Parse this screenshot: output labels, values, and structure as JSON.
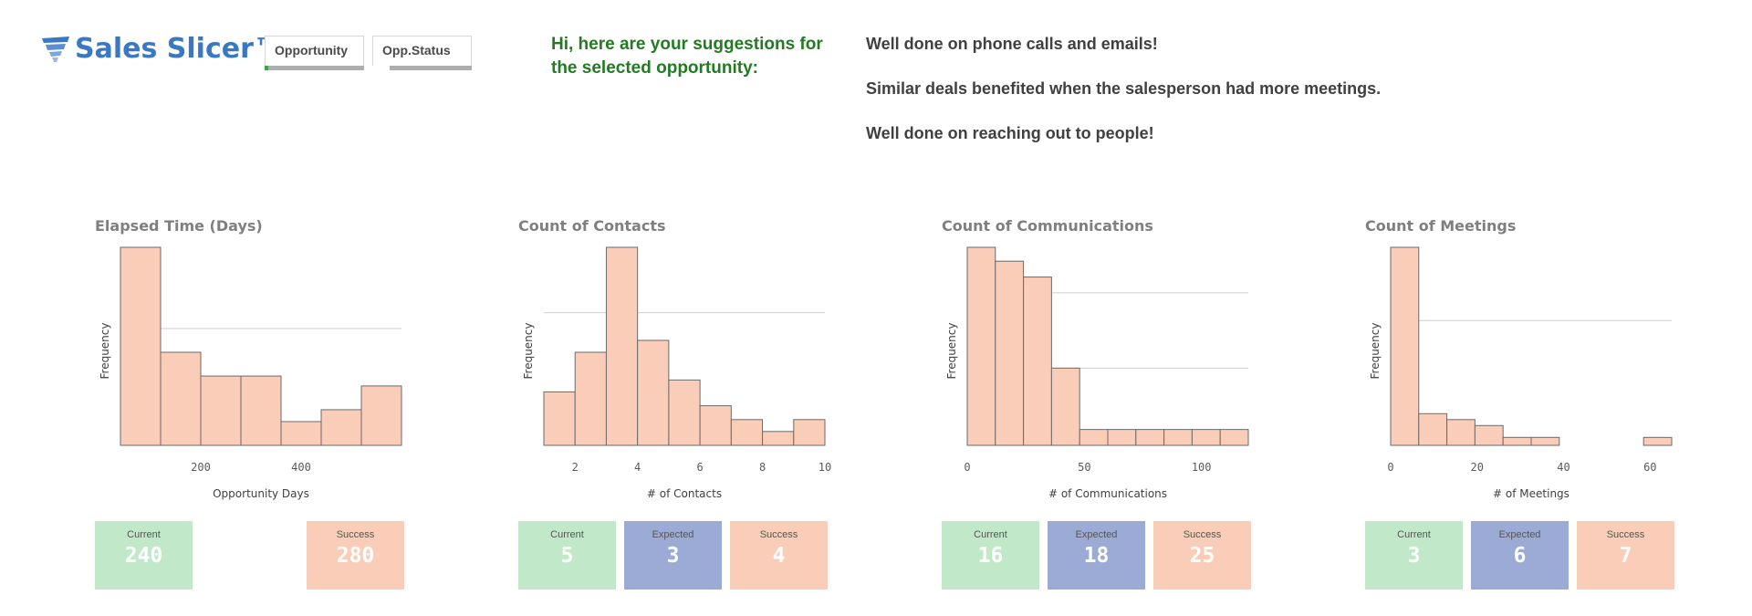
{
  "app": {
    "logo_text": "Sales Slicer™",
    "logo_icon": "tornado-icon",
    "brand_color": "#3b78c4"
  },
  "filters": [
    {
      "label": "Opportunity",
      "selection_fraction": 0.04,
      "selection_color": "#3aa64a"
    },
    {
      "label": "Opp.Status",
      "selection_fraction": 0.17,
      "selection_color": "#ffffff"
    }
  ],
  "suggestions": {
    "heading": "Hi, here are your suggestions for the selected opportunity:",
    "heading_color": "#237a23",
    "items": [
      "Well done on phone calls and emails!",
      "Similar deals benefited when the salesperson had more meetings.",
      "Well done on reaching out to people!"
    ]
  },
  "colors": {
    "bar_fill": "#f9cdb8",
    "bar_stroke": "#6b6b6b",
    "current": "#c1e8c9",
    "expected": "#9babd6",
    "success": "#f9cdb8",
    "refline": "#cfcfcf"
  },
  "chart_data": [
    {
      "type": "bar",
      "title": "Elapsed Time (Days)",
      "xlabel": "Opportunity Days",
      "ylabel": "Frequency",
      "bin_edges": [
        40,
        120,
        200,
        280,
        360,
        440,
        520,
        600
      ],
      "values": [
        10,
        4.7,
        3.5,
        3.5,
        1.2,
        1.8,
        3
      ],
      "xlim": [
        40,
        600
      ],
      "ylim": [
        0,
        10
      ],
      "xticks": [
        200,
        400
      ],
      "reference_lines": [
        5.9
      ],
      "grid": false
    },
    {
      "type": "bar",
      "title": "Count of Contacts",
      "xlabel": "# of Contacts",
      "ylabel": "Frequency",
      "bin_edges": [
        1,
        2,
        3,
        4,
        5,
        6,
        7,
        8,
        9,
        10
      ],
      "values": [
        27,
        47,
        100,
        53,
        33,
        20,
        13,
        7,
        13
      ],
      "xlim": [
        1,
        10
      ],
      "ylim": [
        0,
        100
      ],
      "xticks": [
        2,
        4,
        6,
        8,
        10
      ],
      "reference_lines": [
        67
      ],
      "grid": false
    },
    {
      "type": "bar",
      "title": "Count of Communications",
      "xlabel": "# of Communications",
      "ylabel": "Frequency",
      "bin_edges": [
        0,
        12,
        24,
        36,
        48,
        60,
        72,
        84,
        96,
        108,
        120
      ],
      "values": [
        100,
        93,
        85,
        39,
        8,
        8,
        8,
        8,
        8,
        8
      ],
      "xlim": [
        0,
        120
      ],
      "ylim": [
        0,
        100
      ],
      "xticks": [
        0,
        50,
        100
      ],
      "reference_lines": [
        77,
        39
      ],
      "grid": false
    },
    {
      "type": "bar",
      "title": "Count of Meetings",
      "xlabel": "# of Meetings",
      "ylabel": "Frequency",
      "bin_edges": [
        0,
        6.5,
        13,
        19.5,
        26,
        32.5,
        39,
        45.5,
        52,
        58.5,
        65
      ],
      "values": [
        100,
        16,
        13,
        10,
        4,
        4,
        0,
        0,
        0,
        4
      ],
      "xlim": [
        0,
        65
      ],
      "ylim": [
        0,
        100
      ],
      "xticks": [
        0,
        20,
        40,
        60
      ],
      "reference_lines": [
        63
      ],
      "grid": false
    }
  ],
  "kpis": [
    [
      {
        "label": "Current",
        "value": "240",
        "kind": "current"
      },
      {
        "label": "Success",
        "value": "280",
        "kind": "success"
      }
    ],
    [
      {
        "label": "Current",
        "value": "5",
        "kind": "current"
      },
      {
        "label": "Expected",
        "value": "3",
        "kind": "expected"
      },
      {
        "label": "Success",
        "value": "4",
        "kind": "success"
      }
    ],
    [
      {
        "label": "Current",
        "value": "16",
        "kind": "current"
      },
      {
        "label": "Expected",
        "value": "18",
        "kind": "expected"
      },
      {
        "label": "Success",
        "value": "25",
        "kind": "success"
      }
    ],
    [
      {
        "label": "Current",
        "value": "3",
        "kind": "current"
      },
      {
        "label": "Expected",
        "value": "6",
        "kind": "expected"
      },
      {
        "label": "Success",
        "value": "7",
        "kind": "success"
      }
    ]
  ]
}
